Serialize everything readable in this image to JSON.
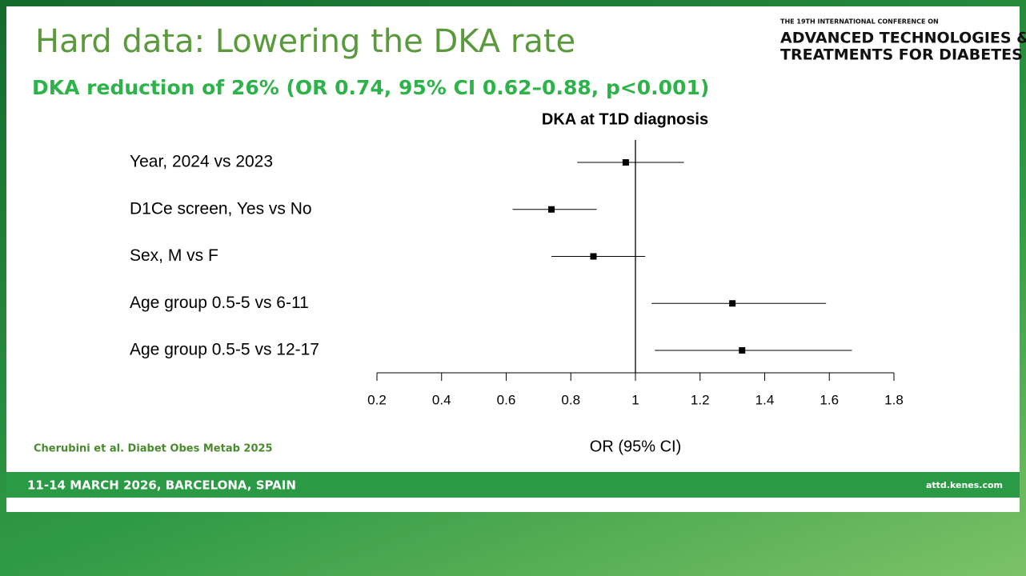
{
  "slide": {
    "title": "Hard data: Lowering the DKA rate",
    "subtitle": "DKA reduction of 26%  (OR 0.74, 95% CI 0.62–0.88, p<0.001)",
    "citation": "Cherubini et al. Diabet Obes Metab 2025",
    "logo": {
      "line1": "THE 19TH INTERNATIONAL CONFERENCE ON",
      "line2": "ADVANCED TECHNOLOGIES &",
      "line3": "TREATMENTS FOR DIABETES"
    },
    "footer": {
      "dates": "11-14 MARCH 2026, BARCELONA, SPAIN",
      "website": "attd.kenes.com"
    }
  },
  "chart_data": {
    "type": "forest",
    "title": "DKA at T1D diagnosis",
    "x_label": "OR (95% CI)",
    "categories": [
      "Year, 2024 vs 2023",
      "D1Ce screen, Yes vs No",
      "Sex, M vs F",
      "Age group 0.5-5 vs 6-11",
      "Age group 0.5-5 vs 12-17"
    ],
    "values": [
      0.97,
      0.74,
      0.87,
      1.3,
      1.33
    ],
    "lower": [
      0.82,
      0.62,
      0.74,
      1.05,
      1.06
    ],
    "upper": [
      1.15,
      0.88,
      1.03,
      1.59,
      1.67
    ],
    "xlim": [
      0.2,
      1.8
    ],
    "xticks": [
      0.2,
      0.4,
      0.6,
      0.8,
      1,
      1.2,
      1.4,
      1.6,
      1.8
    ],
    "reference": 1,
    "color": "#000000"
  }
}
